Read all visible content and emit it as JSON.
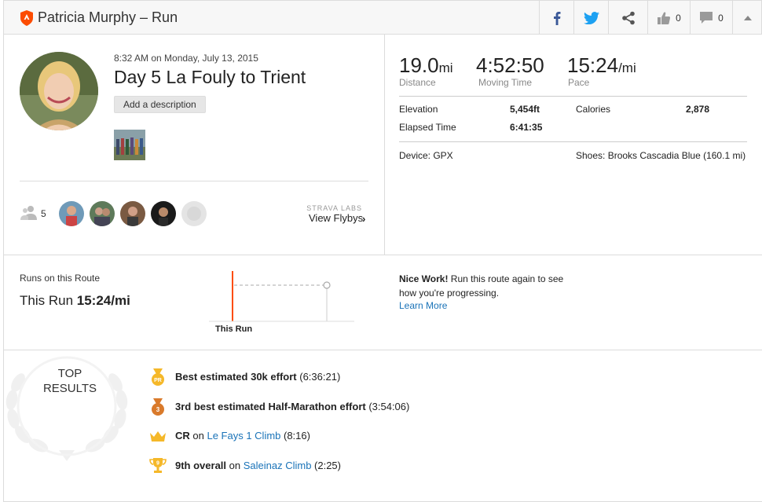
{
  "header": {
    "title": "Patricia Murphy – Run",
    "kudos_count": "0",
    "comments_count": "0"
  },
  "activity": {
    "timestamp": "8:32 AM on Monday, July 13, 2015",
    "name": "Day 5 La Fouly to Trient",
    "add_description": "Add a description",
    "athlete_count": "5",
    "labs_label": "STRAVA LABS",
    "flybys_label": "View Flybys",
    "flybys_chevron": "›"
  },
  "stats": {
    "distance": {
      "value": "19.0",
      "unit": "mi",
      "label": "Distance"
    },
    "moving_time": {
      "value": "4:52:50",
      "label": "Moving Time"
    },
    "pace": {
      "value": "15:24",
      "unit": "/mi",
      "label": "Pace"
    },
    "elevation_label": "Elevation",
    "elevation_value": "5,454ft",
    "calories_label": "Calories",
    "calories_value": "2,878",
    "elapsed_label": "Elapsed Time",
    "elapsed_value": "6:41:35",
    "device": "Device: GPX",
    "shoes": "Shoes: Brooks Cascadia Blue (160.1 mi)"
  },
  "route": {
    "title": "Runs on this Route",
    "this_run_prefix": "This Run ",
    "this_run_pace": "15:24/mi",
    "chart_label": "This Run",
    "nice_bold": "Nice Work!",
    "nice_text": " Run this route again to see how you're progressing.",
    "learn_more": "Learn More"
  },
  "results": {
    "heading_line1": "TOP",
    "heading_line2": "RESULTS",
    "pr_badge": "PR",
    "third_badge": "3",
    "ninth_badge": "9",
    "items": [
      {
        "bold": "Best estimated 30k effort",
        "on": "",
        "link": "",
        "tail": " (6:36:21)"
      },
      {
        "bold": "3rd best estimated Half-Marathon effort",
        "on": "",
        "link": "",
        "tail": " (3:54:06)"
      },
      {
        "bold": "CR",
        "on": " on ",
        "link": "Le Fays 1 Climb",
        "tail": " (8:16)"
      },
      {
        "bold": "9th overall",
        "on": " on ",
        "link": "Saleinaz Climb",
        "tail": " (2:25)"
      }
    ]
  },
  "colors": {
    "brand": "#fc4c02",
    "link": "#1a73b8",
    "facebook": "#3b5998",
    "twitter": "#1da1f2",
    "gold": "#f5b829",
    "bronze": "#d97a2b"
  }
}
